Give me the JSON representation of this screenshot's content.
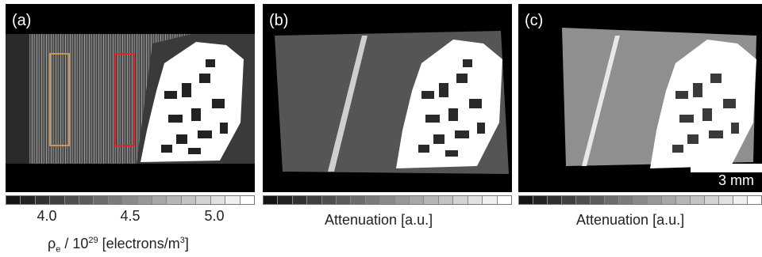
{
  "panels": {
    "a": {
      "label": "(a)"
    },
    "b": {
      "label": "(b)"
    },
    "c": {
      "label": "(c)"
    }
  },
  "colorbar_a": {
    "ticks": [
      "4.0",
      "4.5",
      "5.0"
    ],
    "title_rho": "ρ",
    "title_sub": "e",
    "title_mid": " / 10",
    "title_exp": "29",
    "title_unit": " [electrons/m",
    "title_unit_exp": "3",
    "title_end": "]"
  },
  "colorbar_b": {
    "title": "Attenuation [a.u.]"
  },
  "colorbar_c": {
    "title": "Attenuation [a.u.]"
  },
  "scale_bar": {
    "label": "3 mm"
  },
  "colors": {
    "roi_orange": "#c8955a",
    "roi_red": "#e0252b",
    "background": "#000000",
    "bone": "#ffffff"
  }
}
